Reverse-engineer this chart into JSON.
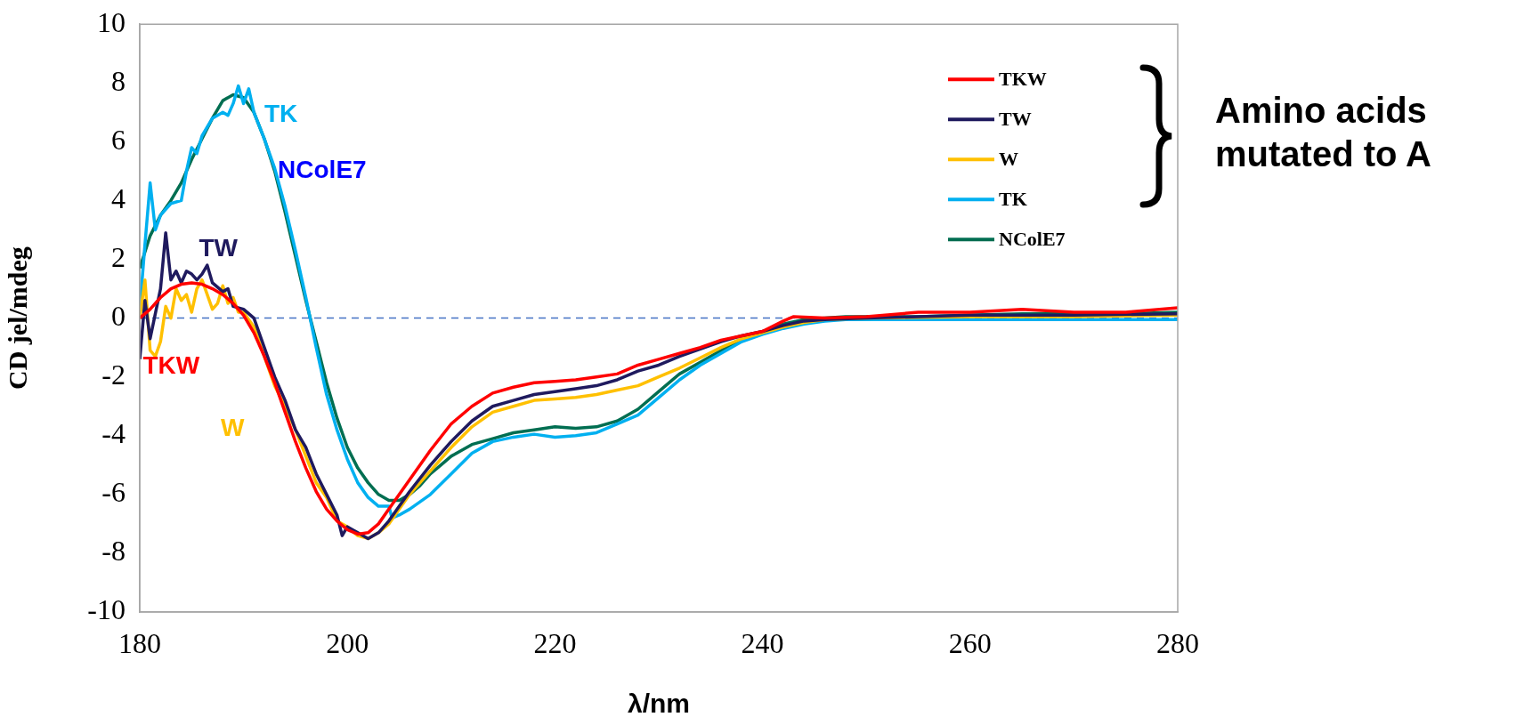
{
  "chart_data": {
    "type": "line",
    "xlabel": "λ/nm",
    "ylabel": "CD jel/mdeg",
    "xlim": [
      180,
      280
    ],
    "xticks": [
      180,
      200,
      220,
      240,
      260,
      280
    ],
    "ylim": [
      -10,
      10
    ],
    "yticks": [
      -10,
      -8,
      -6,
      -4,
      -2,
      0,
      2,
      4,
      6,
      8,
      10
    ],
    "grid": false,
    "legend": "top right",
    "marker": "none",
    "line_style": "solid",
    "ref_lines": [
      {
        "axis": "y",
        "value": 0,
        "color": "#4472c4",
        "line_style": "dashed"
      }
    ],
    "annotations": [
      "TK",
      "NColE7",
      "TW",
      "TKW",
      "W",
      "Amino acids mutated to A"
    ],
    "series": [
      {
        "name": "TKW",
        "color": "#ff0000",
        "x": [
          180,
          181,
          182,
          183,
          184,
          185,
          186,
          187,
          188,
          189,
          190,
          191,
          192,
          193,
          194,
          195,
          196,
          197,
          198,
          199,
          200,
          201,
          202,
          203,
          204,
          205,
          206,
          207,
          208,
          210,
          212,
          214,
          216,
          218,
          220,
          222,
          224,
          226,
          228,
          230,
          232,
          234,
          236,
          238,
          240,
          242,
          243,
          246,
          250,
          255,
          260,
          265,
          270,
          275,
          280
        ],
        "values": [
          0,
          0.3,
          0.7,
          1.0,
          1.15,
          1.2,
          1.15,
          1.0,
          0.8,
          0.5,
          0.1,
          -0.5,
          -1.3,
          -2.2,
          -3.2,
          -4.2,
          -5.1,
          -5.9,
          -6.5,
          -6.9,
          -7.2,
          -7.35,
          -7.3,
          -7.0,
          -6.5,
          -6.0,
          -5.5,
          -5.0,
          -4.5,
          -3.6,
          -3.0,
          -2.55,
          -2.35,
          -2.2,
          -2.15,
          -2.1,
          -2.0,
          -1.9,
          -1.6,
          -1.4,
          -1.2,
          -1.0,
          -0.75,
          -0.6,
          -0.45,
          -0.1,
          0.05,
          0,
          0.05,
          0.2,
          0.2,
          0.3,
          0.2,
          0.2,
          0.35
        ]
      },
      {
        "name": "TW",
        "color": "#1f1a5e",
        "x": [
          180,
          180.5,
          181,
          182,
          182.5,
          183,
          183.5,
          184,
          184.5,
          185,
          185.5,
          186,
          186.5,
          187,
          188,
          188.5,
          189,
          190,
          191,
          192,
          193,
          194,
          195,
          196,
          197,
          198,
          199,
          199.5,
          200,
          201,
          202,
          203,
          204,
          205,
          206,
          208,
          210,
          212,
          214,
          216,
          218,
          220,
          222,
          224,
          226,
          228,
          230,
          232,
          234,
          236,
          238,
          240,
          242,
          244,
          246,
          250,
          260,
          270,
          280
        ],
        "values": [
          -1.4,
          0.6,
          -0.7,
          1.0,
          2.9,
          1.3,
          1.6,
          1.2,
          1.6,
          1.5,
          1.3,
          1.5,
          1.8,
          1.2,
          0.9,
          1.0,
          0.4,
          0.3,
          0,
          -1.0,
          -2.0,
          -2.8,
          -3.8,
          -4.4,
          -5.3,
          -6.0,
          -6.7,
          -7.4,
          -7.1,
          -7.3,
          -7.5,
          -7.3,
          -6.9,
          -6.4,
          -5.9,
          -5.0,
          -4.2,
          -3.5,
          -3.0,
          -2.8,
          -2.6,
          -2.5,
          -2.4,
          -2.3,
          -2.1,
          -1.8,
          -1.6,
          -1.3,
          -1.05,
          -0.8,
          -0.6,
          -0.45,
          -0.25,
          -0.1,
          -0.05,
          0,
          0.1,
          0.1,
          0.15
        ]
      },
      {
        "name": "W",
        "color": "#ffc000",
        "x": [
          180,
          180.5,
          181,
          181.5,
          182,
          182.5,
          183,
          183.5,
          184,
          184.5,
          185,
          185.5,
          186,
          186.5,
          187,
          187.5,
          188,
          188.5,
          189,
          189.5,
          190,
          191,
          192,
          193,
          194,
          195,
          196,
          197,
          198,
          199,
          200,
          201,
          202,
          203,
          204,
          205,
          206,
          208,
          210,
          212,
          214,
          216,
          218,
          220,
          222,
          224,
          226,
          228,
          230,
          232,
          234,
          236,
          238,
          240,
          242,
          244,
          246,
          250,
          260,
          270,
          280
        ],
        "values": [
          0,
          1.3,
          -1.1,
          -1.3,
          -0.8,
          0.4,
          0,
          1.0,
          0.6,
          0.8,
          0.2,
          1.0,
          1.3,
          0.8,
          0.3,
          0.5,
          1.1,
          0.5,
          0.7,
          0.2,
          0.2,
          -0.3,
          -1.3,
          -2.3,
          -3.0,
          -3.8,
          -4.7,
          -5.6,
          -6.1,
          -6.9,
          -7.1,
          -7.4,
          -7.5,
          -7.3,
          -7.0,
          -6.5,
          -6.0,
          -5.2,
          -4.4,
          -3.7,
          -3.2,
          -3.0,
          -2.8,
          -2.75,
          -2.7,
          -2.6,
          -2.45,
          -2.3,
          -2.0,
          -1.7,
          -1.35,
          -1.0,
          -0.7,
          -0.5,
          -0.3,
          -0.15,
          -0.05,
          0,
          0.05,
          0.05,
          0.1
        ]
      },
      {
        "name": "TK",
        "color": "#00b0f0",
        "x": [
          180,
          180.5,
          181,
          181.5,
          182,
          183,
          184,
          184.5,
          185,
          185.5,
          186,
          187,
          188,
          188.5,
          189,
          189.5,
          190,
          190.5,
          191,
          192,
          193,
          194,
          195,
          196,
          197,
          198,
          199,
          200,
          201,
          202,
          203,
          204,
          204.3,
          205,
          206,
          208,
          210,
          212,
          214,
          216,
          218,
          220,
          222,
          224,
          226,
          228,
          230,
          232,
          234,
          236,
          238,
          240,
          242,
          244,
          246,
          248,
          250,
          255,
          260,
          265,
          270,
          275,
          280
        ],
        "values": [
          0.3,
          2.5,
          4.6,
          3.0,
          3.5,
          3.9,
          4.0,
          5.0,
          5.8,
          5.6,
          6.2,
          6.8,
          7.0,
          6.9,
          7.3,
          7.9,
          7.3,
          7.8,
          7.0,
          6.1,
          5.1,
          3.8,
          2.3,
          0.7,
          -1.0,
          -2.6,
          -3.8,
          -4.8,
          -5.6,
          -6.1,
          -6.4,
          -6.4,
          -6.8,
          -6.7,
          -6.5,
          -6.0,
          -5.3,
          -4.6,
          -4.2,
          -4.05,
          -3.95,
          -4.05,
          -4.0,
          -3.9,
          -3.6,
          -3.3,
          -2.7,
          -2.1,
          -1.6,
          -1.2,
          -0.8,
          -0.55,
          -0.35,
          -0.2,
          -0.1,
          -0.05,
          -0.05,
          -0.05,
          -0.05,
          -0.05,
          -0.05,
          -0.05,
          -0.05
        ]
      },
      {
        "name": "NColE7",
        "color": "#006e51",
        "x": [
          180,
          181,
          182,
          183,
          184,
          185,
          186,
          187,
          188,
          189,
          190,
          191,
          192,
          193,
          194,
          195,
          196,
          197,
          198,
          199,
          200,
          201,
          202,
          203,
          204,
          205,
          206,
          207,
          208,
          209,
          210,
          212,
          214,
          216,
          218,
          220,
          222,
          224,
          226,
          228,
          230,
          232,
          234,
          236,
          238,
          240,
          242,
          244,
          246,
          248,
          250,
          255,
          260,
          265,
          270,
          275,
          280
        ],
        "values": [
          1.7,
          2.8,
          3.5,
          4.0,
          4.6,
          5.4,
          6.1,
          6.8,
          7.4,
          7.6,
          7.5,
          7.0,
          6.1,
          5.0,
          3.6,
          2.1,
          0.6,
          -0.8,
          -2.2,
          -3.4,
          -4.4,
          -5.1,
          -5.6,
          -6.0,
          -6.2,
          -6.2,
          -6.0,
          -5.7,
          -5.3,
          -5.0,
          -4.7,
          -4.3,
          -4.1,
          -3.9,
          -3.8,
          -3.7,
          -3.75,
          -3.7,
          -3.5,
          -3.1,
          -2.5,
          -1.9,
          -1.5,
          -1.1,
          -0.7,
          -0.5,
          -0.2,
          -0.05,
          0,
          0.05,
          0.05,
          0.05,
          0.1,
          0.15,
          0.15,
          0.15,
          0.2
        ]
      }
    ]
  }
}
